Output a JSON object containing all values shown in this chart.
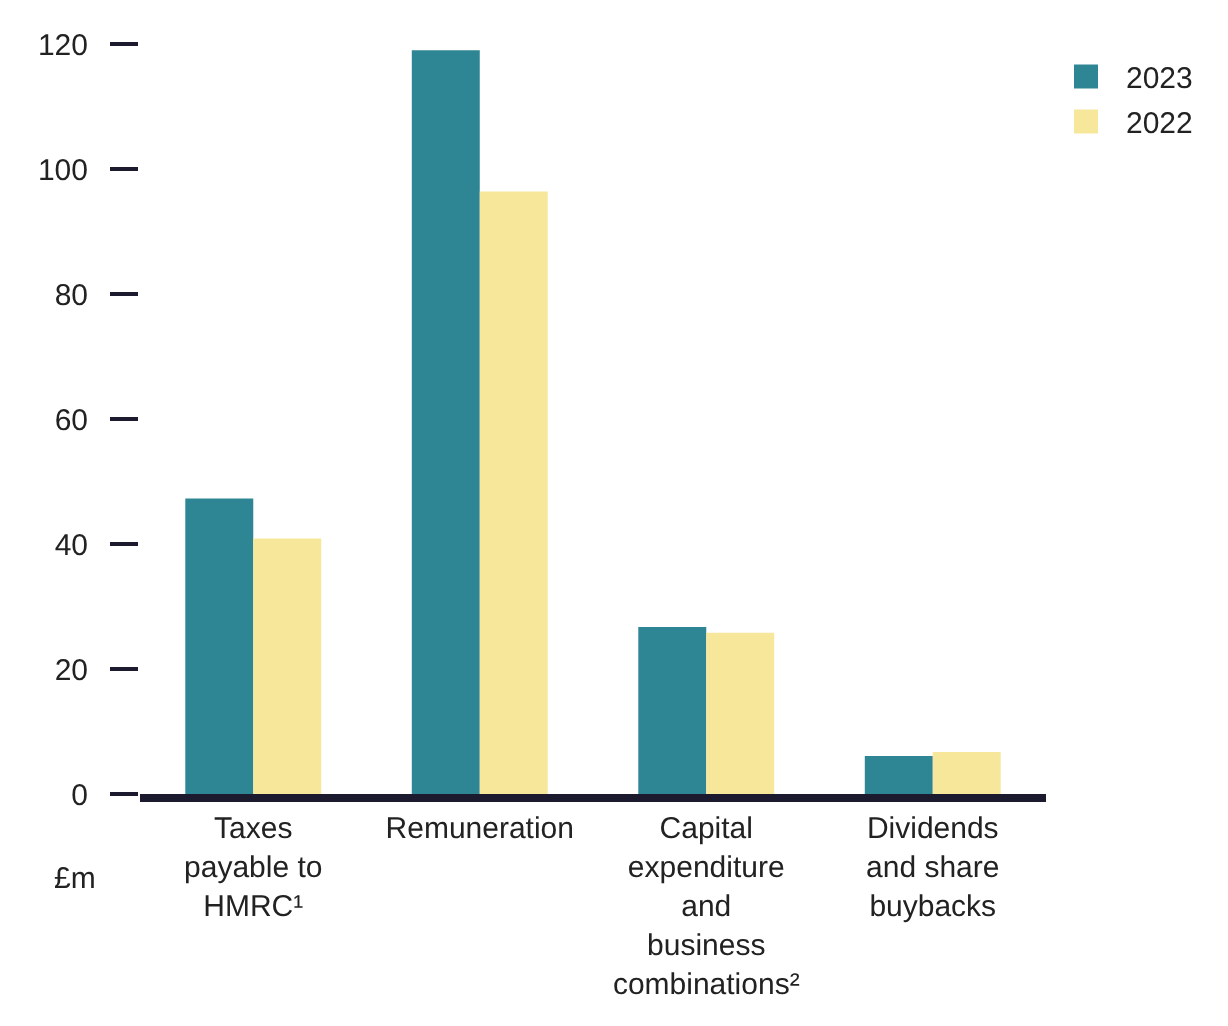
{
  "chart_data": {
    "type": "bar",
    "ylabel": "£m",
    "categories": [
      "Taxes payable to HMRC¹",
      "Remuneration",
      "Capital expenditure and business combinations²",
      "Dividends and share buybacks"
    ],
    "series": [
      {
        "name": "2023",
        "color": "#2e8594",
        "values": [
          47.3,
          119,
          26.7,
          6.1
        ]
      },
      {
        "name": "2022",
        "color": "#f7e79a",
        "values": [
          40.9,
          96.4,
          25.8,
          6.7
        ]
      }
    ],
    "ylim": [
      0,
      120
    ],
    "yticks": [
      0,
      20,
      40,
      60,
      80,
      100,
      120
    ],
    "legend": "top right"
  }
}
